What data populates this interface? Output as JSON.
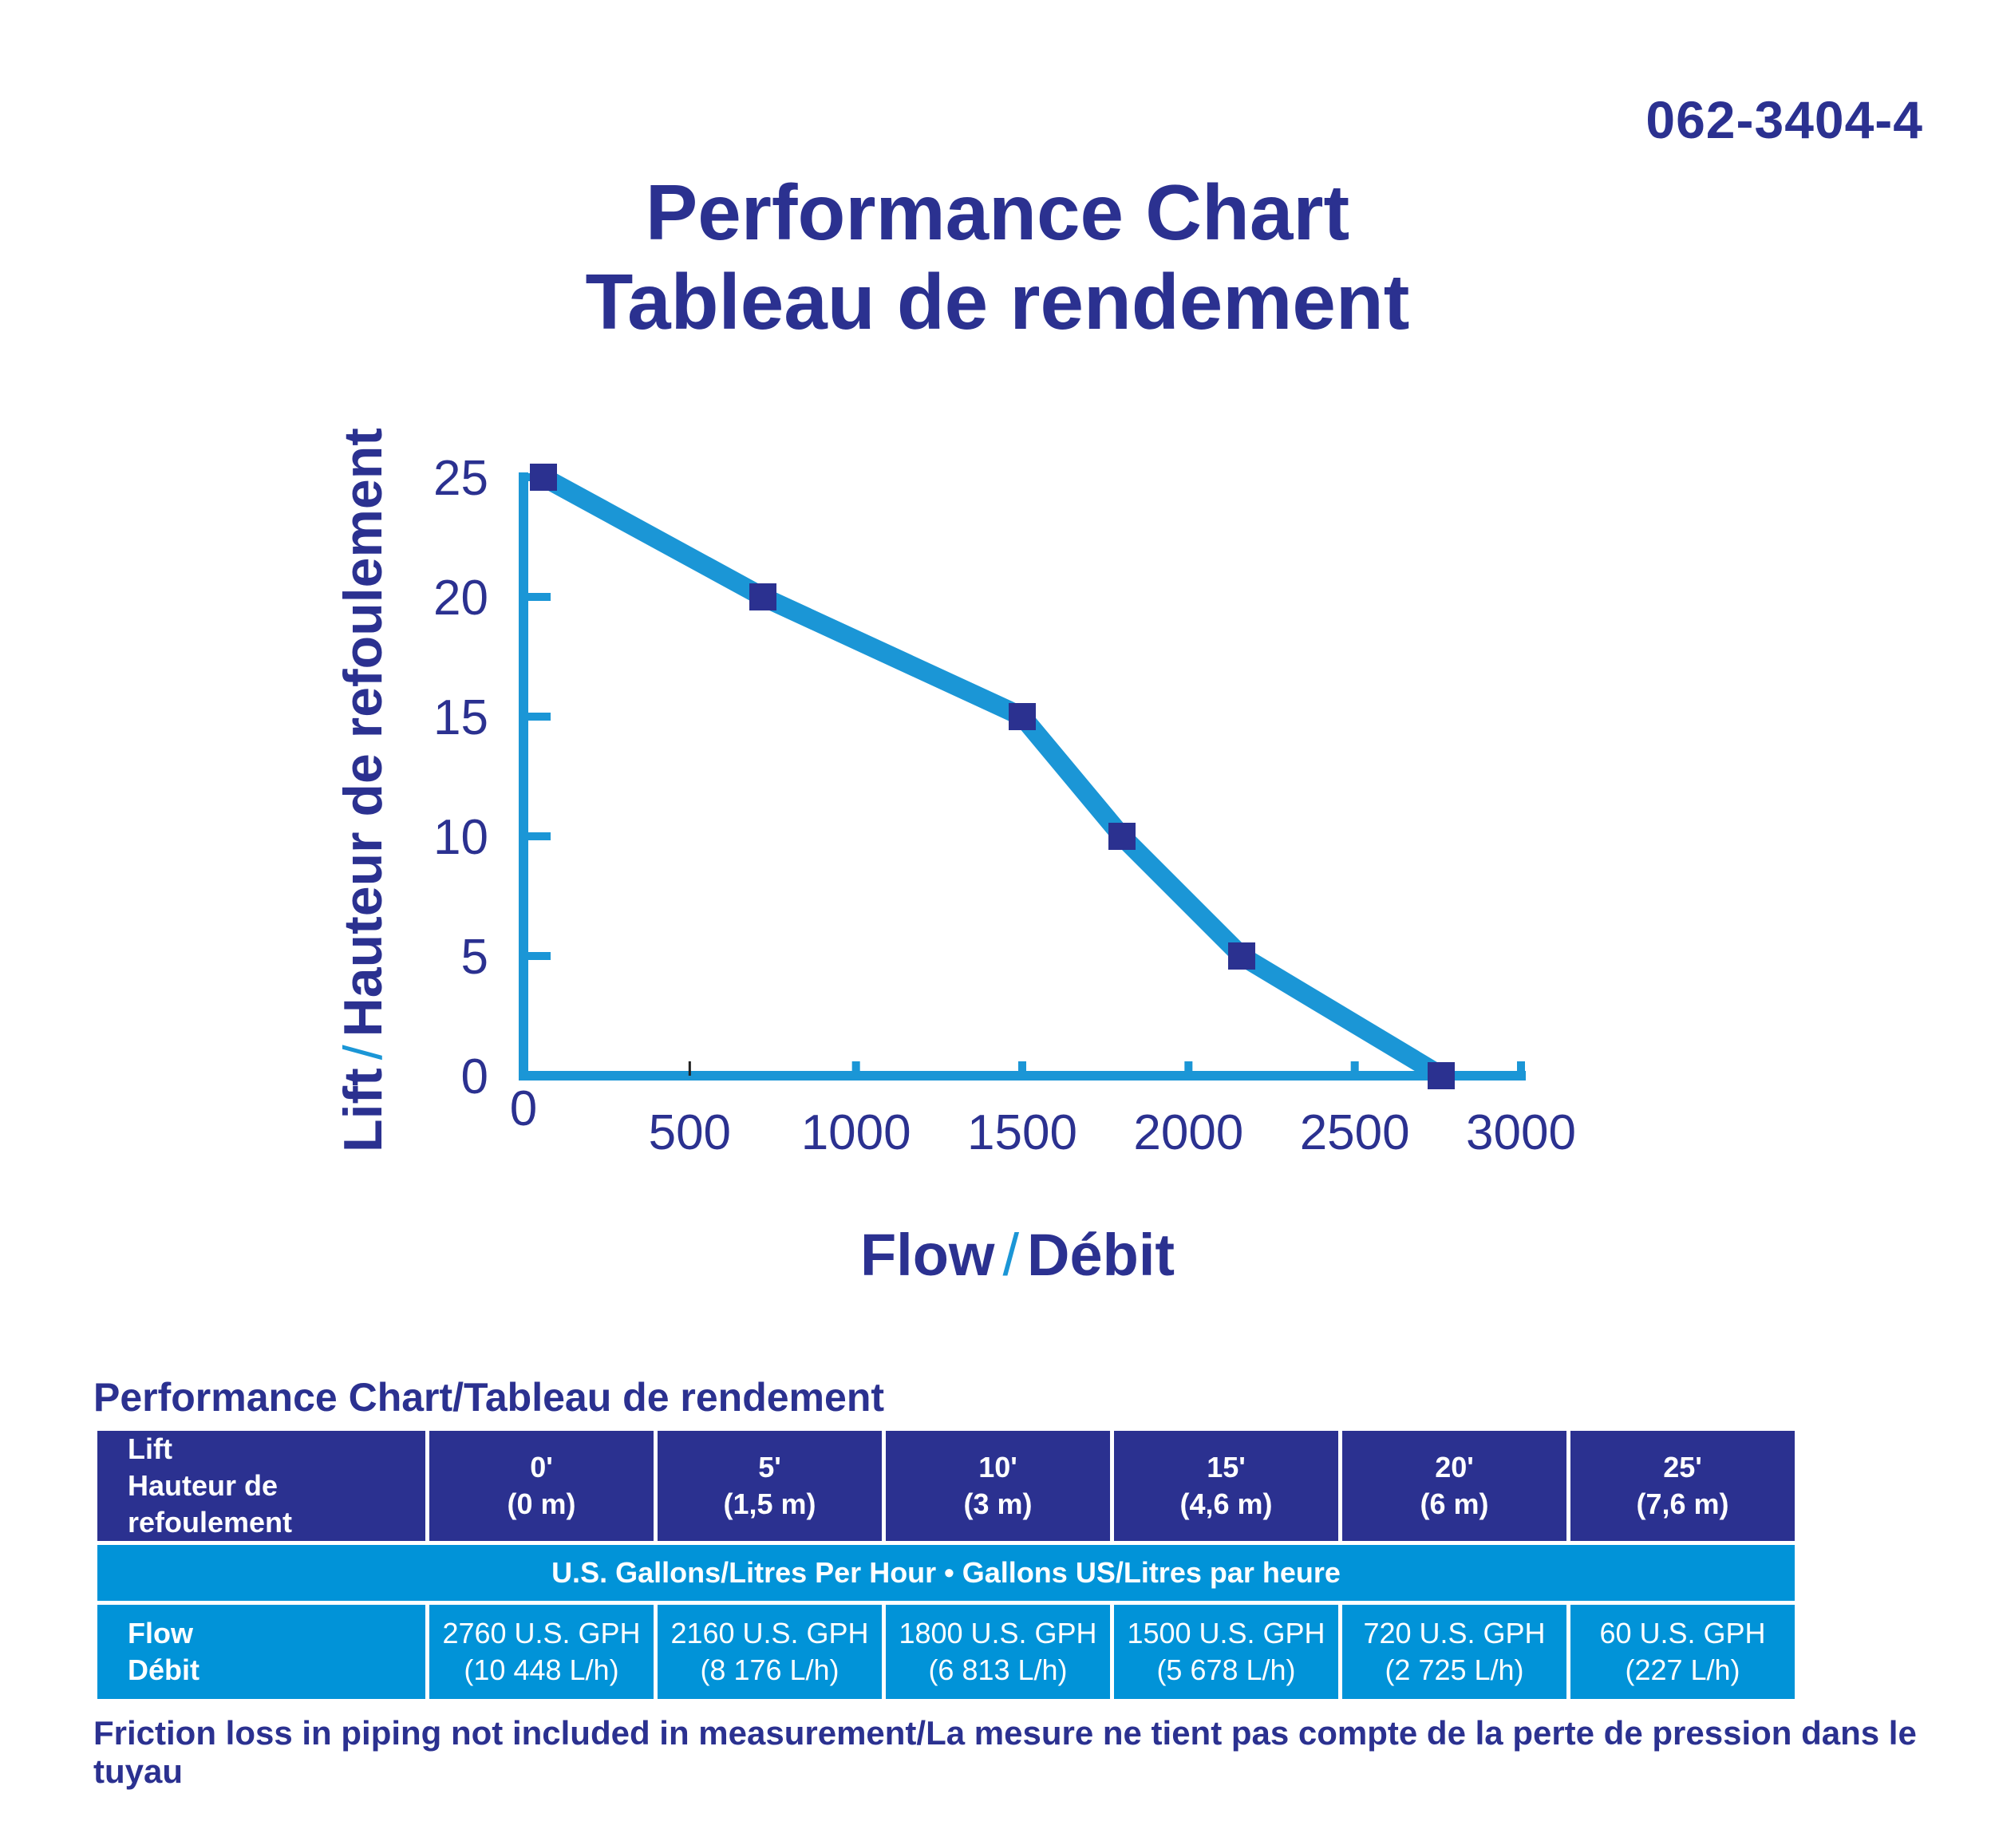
{
  "document_code": "062-3404-4",
  "title_line1": "Performance Chart",
  "title_line2": "Tableau de rendement",
  "colors": {
    "navy": "#2b3190",
    "blue": "#0193d8",
    "line": "#1b96d6"
  },
  "chart_data": {
    "type": "line",
    "ylabel_en": "Lift",
    "ylabel_fr": "Hauteur de refoulement",
    "xlabel_en": "Flow",
    "xlabel_fr": "Débit",
    "x_ticks": [
      0,
      500,
      1000,
      1500,
      2000,
      2500,
      3000
    ],
    "y_ticks": [
      0,
      5,
      10,
      15,
      20,
      25
    ],
    "xlim": [
      0,
      3000
    ],
    "ylim": [
      0,
      25
    ],
    "points": [
      {
        "x": 60,
        "y": 25
      },
      {
        "x": 720,
        "y": 20
      },
      {
        "x": 1500,
        "y": 15
      },
      {
        "x": 1800,
        "y": 10
      },
      {
        "x": 2160,
        "y": 5
      },
      {
        "x": 2760,
        "y": 0
      }
    ]
  },
  "table": {
    "title": "Performance Chart/Tableau de rendement",
    "lift_label_en": "Lift",
    "lift_label_fr": "Hauteur de refoulement",
    "lift_values": [
      {
        "ft": "0'",
        "m": "(0 m)"
      },
      {
        "ft": "5'",
        "m": "(1,5 m)"
      },
      {
        "ft": "10'",
        "m": "(3 m)"
      },
      {
        "ft": "15'",
        "m": "(4,6 m)"
      },
      {
        "ft": "20'",
        "m": "(6 m)"
      },
      {
        "ft": "25'",
        "m": "(7,6 m)"
      }
    ],
    "units_band": "U.S. Gallons/Litres Per Hour • Gallons US/Litres par heure",
    "flow_label_en": "Flow",
    "flow_label_fr": "Débit",
    "flow_values": [
      {
        "gph": "2760 U.S. GPH",
        "lh": "(10 448 L/h)"
      },
      {
        "gph": "2160 U.S. GPH",
        "lh": "(8 176 L/h)"
      },
      {
        "gph": "1800 U.S. GPH",
        "lh": "(6 813 L/h)"
      },
      {
        "gph": "1500 U.S. GPH",
        "lh": "(5 678 L/h)"
      },
      {
        "gph": "720 U.S. GPH",
        "lh": "(2 725 L/h)"
      },
      {
        "gph": "60 U.S. GPH",
        "lh": "(227 L/h)"
      }
    ]
  },
  "footnote": "Friction loss in piping not included in measurement/La mesure ne tient pas compte de la perte de pression dans le tuyau"
}
